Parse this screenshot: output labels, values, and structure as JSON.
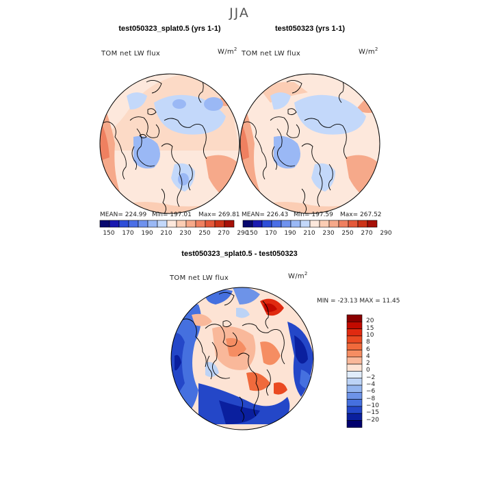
{
  "figure": {
    "title": "JJA"
  },
  "chart_data": [
    {
      "type": "heatmap",
      "projection": "north polar stereographic",
      "title": "test050323_splat0.5 (yrs 1-1)",
      "variable": "TOM net LW flux",
      "units_base": "W/m",
      "units_exp": "2",
      "stats": {
        "mean_label": "MEAN=",
        "mean": "224.99",
        "min_label": "Min=",
        "min": "197.01",
        "max_label": "Max=",
        "max": "269.81"
      },
      "colorbar_levels": [
        150,
        160,
        170,
        180,
        190,
        200,
        210,
        220,
        230,
        240,
        250,
        260,
        270,
        280,
        290
      ],
      "colorbar_labels": [
        "150",
        "170",
        "190",
        "210",
        "230",
        "250",
        "270",
        "290"
      ],
      "value_range": [
        197.01,
        269.81
      ]
    },
    {
      "type": "heatmap",
      "projection": "north polar stereographic",
      "title": "test050323 (yrs 1-1)",
      "variable": "TOM net LW flux",
      "units_base": "W/m",
      "units_exp": "2",
      "stats": {
        "mean_label": "MEAN=",
        "mean": "226.43",
        "min_label": "Min=",
        "min": "197.59",
        "max_label": "Max=",
        "max": "267.52"
      },
      "colorbar_levels": [
        150,
        160,
        170,
        180,
        190,
        200,
        210,
        220,
        230,
        240,
        250,
        260,
        270,
        280,
        290
      ],
      "colorbar_labels": [
        "150",
        "170",
        "190",
        "210",
        "230",
        "250",
        "270",
        "290"
      ],
      "value_range": [
        197.59,
        267.52
      ]
    },
    {
      "type": "heatmap",
      "projection": "north polar stereographic",
      "title": "test050323_splat0.5 - test050323",
      "variable": "TOM net LW flux",
      "units_base": "W/m",
      "units_exp": "2",
      "stats": {
        "min_label": "MIN =",
        "min": "-23.13",
        "max_label": "MAX =",
        "max": "11.45"
      },
      "colorbar_levels": [
        20,
        15,
        10,
        8,
        6,
        4,
        2,
        0,
        -2,
        -4,
        -6,
        -8,
        -10,
        -15,
        -20
      ],
      "colorbar_labels": [
        "20",
        "15",
        "10",
        "8",
        "6",
        "4",
        "2",
        "0",
        "−2",
        "−4",
        "−6",
        "−8",
        "−10",
        "−15",
        "−20"
      ],
      "value_range": [
        -23.13,
        11.45
      ]
    }
  ],
  "colors": {
    "abs_palette": [
      "#08086e",
      "#1a1ab0",
      "#2e4ed8",
      "#4a6ee6",
      "#6f92ee",
      "#9ab8f5",
      "#c3d8fa",
      "#fde8dc",
      "#fbcdb4",
      "#f6a98a",
      "#ef8060",
      "#e4593a",
      "#cc3318",
      "#a61008"
    ],
    "diff_palette": [
      "#8a0000",
      "#c20a00",
      "#e02a10",
      "#ea4a22",
      "#f06a3c",
      "#f58d62",
      "#f9b89a",
      "#fde3d4",
      "#e0ecfb",
      "#bcd3f6",
      "#94b5ef",
      "#6d93e8",
      "#4570df",
      "#2447c8",
      "#0a1f9e",
      "#00006e"
    ]
  }
}
